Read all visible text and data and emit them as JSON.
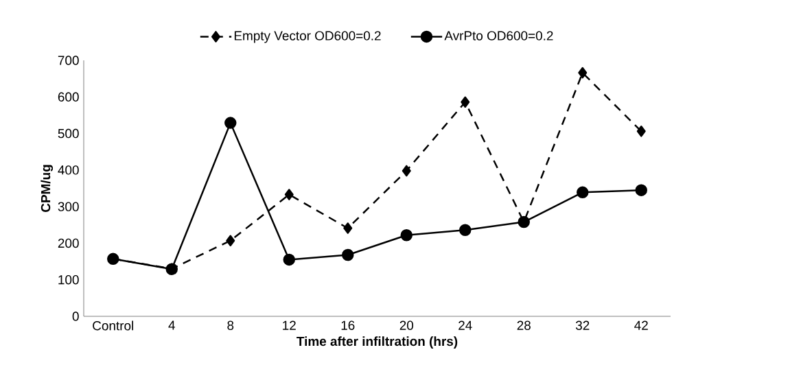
{
  "chart_data": {
    "type": "line",
    "xlabel": "Time after infiltration (hrs)",
    "ylabel": "CPM/ug",
    "categories": [
      "Control",
      "4",
      "8",
      "12",
      "16",
      "20",
      "24",
      "28",
      "32",
      "42"
    ],
    "series": [
      {
        "name": "Empty Vector OD600=0.2",
        "color": "#000000",
        "marker": "diamond",
        "line_style": "dashed",
        "values": [
          157,
          130,
          207,
          333,
          241,
          398,
          586,
          258,
          666,
          506
        ]
      },
      {
        "name": "AvrPto OD600=0.2",
        "color": "#000000",
        "marker": "circle",
        "line_style": "solid",
        "values": [
          157,
          129,
          529,
          155,
          168,
          222,
          236,
          258,
          339,
          345
        ]
      }
    ],
    "ylim": [
      0,
      700
    ],
    "yticks": [
      0,
      100,
      200,
      300,
      400,
      500,
      600,
      700
    ],
    "grid": false,
    "legend": "top"
  }
}
